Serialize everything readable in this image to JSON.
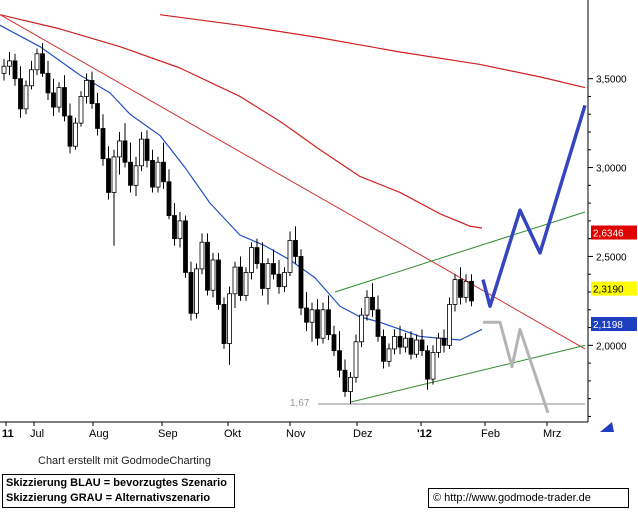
{
  "chart_data": {
    "type": "candlestick",
    "x_tick_labels": [
      "11",
      "Jul",
      "Aug",
      "Sep",
      "Okt",
      "Nov",
      "Dez",
      "'12",
      "Feb",
      "Mrz"
    ],
    "y_tick_labels": [
      "3,5000",
      "3,0000",
      "2,5000",
      "2,0000"
    ],
    "y_ticks": [
      3.5,
      3.0,
      2.5,
      2.0
    ],
    "ylim": [
      1.58,
      3.92
    ],
    "price_tags": [
      {
        "label": "2,6346",
        "value": 2.6346,
        "color": "#e00000"
      },
      {
        "label": "2,3190",
        "value": 2.319,
        "color": "#ffff00"
      },
      {
        "label": "2,1198",
        "value": 2.1198,
        "color": "#1f3fc0"
      }
    ],
    "low_annotation": {
      "label": "1,67",
      "value": 1.67
    },
    "candles": [
      {
        "o": 3.53,
        "h": 3.61,
        "l": 3.49,
        "c": 3.57
      },
      {
        "o": 3.57,
        "h": 3.65,
        "l": 3.52,
        "c": 3.6
      },
      {
        "o": 3.6,
        "h": 3.64,
        "l": 3.46,
        "c": 3.5
      },
      {
        "o": 3.5,
        "h": 3.57,
        "l": 3.28,
        "c": 3.33
      },
      {
        "o": 3.33,
        "h": 3.49,
        "l": 3.3,
        "c": 3.46
      },
      {
        "o": 3.46,
        "h": 3.6,
        "l": 3.44,
        "c": 3.55
      },
      {
        "o": 3.55,
        "h": 3.67,
        "l": 3.52,
        "c": 3.64
      },
      {
        "o": 3.64,
        "h": 3.7,
        "l": 3.51,
        "c": 3.53
      },
      {
        "o": 3.53,
        "h": 3.6,
        "l": 3.38,
        "c": 3.42
      },
      {
        "o": 3.42,
        "h": 3.5,
        "l": 3.29,
        "c": 3.34
      },
      {
        "o": 3.34,
        "h": 3.48,
        "l": 3.31,
        "c": 3.45
      },
      {
        "o": 3.45,
        "h": 3.52,
        "l": 3.26,
        "c": 3.29
      },
      {
        "o": 3.29,
        "h": 3.36,
        "l": 3.08,
        "c": 3.12
      },
      {
        "o": 3.12,
        "h": 3.28,
        "l": 3.1,
        "c": 3.25
      },
      {
        "o": 3.25,
        "h": 3.43,
        "l": 3.23,
        "c": 3.4
      },
      {
        "o": 3.4,
        "h": 3.53,
        "l": 3.36,
        "c": 3.49
      },
      {
        "o": 3.49,
        "h": 3.54,
        "l": 3.33,
        "c": 3.36
      },
      {
        "o": 3.36,
        "h": 3.42,
        "l": 3.18,
        "c": 3.22
      },
      {
        "o": 3.22,
        "h": 3.3,
        "l": 3.01,
        "c": 3.05
      },
      {
        "o": 3.05,
        "h": 3.12,
        "l": 2.82,
        "c": 2.86
      },
      {
        "o": 2.86,
        "h": 3.1,
        "l": 2.56,
        "c": 3.06
      },
      {
        "o": 3.06,
        "h": 3.2,
        "l": 2.96,
        "c": 3.15
      },
      {
        "o": 3.15,
        "h": 3.25,
        "l": 3.0,
        "c": 3.03
      },
      {
        "o": 3.03,
        "h": 3.14,
        "l": 2.86,
        "c": 2.9
      },
      {
        "o": 2.9,
        "h": 3.06,
        "l": 2.84,
        "c": 3.01
      },
      {
        "o": 3.01,
        "h": 3.2,
        "l": 2.98,
        "c": 3.16
      },
      {
        "o": 3.16,
        "h": 3.21,
        "l": 3.0,
        "c": 3.04
      },
      {
        "o": 3.04,
        "h": 3.1,
        "l": 2.86,
        "c": 2.89
      },
      {
        "o": 2.89,
        "h": 3.06,
        "l": 2.86,
        "c": 3.03
      },
      {
        "o": 3.03,
        "h": 3.14,
        "l": 2.88,
        "c": 2.92
      },
      {
        "o": 2.92,
        "h": 2.99,
        "l": 2.71,
        "c": 2.73
      },
      {
        "o": 2.73,
        "h": 2.8,
        "l": 2.56,
        "c": 2.6
      },
      {
        "o": 2.6,
        "h": 2.75,
        "l": 2.55,
        "c": 2.7
      },
      {
        "o": 2.7,
        "h": 2.73,
        "l": 2.38,
        "c": 2.41
      },
      {
        "o": 2.41,
        "h": 2.47,
        "l": 2.14,
        "c": 2.18
      },
      {
        "o": 2.18,
        "h": 2.46,
        "l": 2.15,
        "c": 2.43
      },
      {
        "o": 2.43,
        "h": 2.63,
        "l": 2.4,
        "c": 2.58
      },
      {
        "o": 2.58,
        "h": 2.63,
        "l": 2.28,
        "c": 2.31
      },
      {
        "o": 2.31,
        "h": 2.52,
        "l": 2.27,
        "c": 2.48
      },
      {
        "o": 2.48,
        "h": 2.52,
        "l": 2.2,
        "c": 2.23
      },
      {
        "o": 2.23,
        "h": 2.27,
        "l": 1.98,
        "c": 2.01
      },
      {
        "o": 2.01,
        "h": 2.33,
        "l": 1.89,
        "c": 2.29
      },
      {
        "o": 2.29,
        "h": 2.47,
        "l": 2.21,
        "c": 2.44
      },
      {
        "o": 2.44,
        "h": 2.5,
        "l": 2.25,
        "c": 2.28
      },
      {
        "o": 2.28,
        "h": 2.44,
        "l": 2.25,
        "c": 2.41
      },
      {
        "o": 2.41,
        "h": 2.58,
        "l": 2.37,
        "c": 2.55
      },
      {
        "o": 2.55,
        "h": 2.6,
        "l": 2.43,
        "c": 2.46
      },
      {
        "o": 2.46,
        "h": 2.58,
        "l": 2.28,
        "c": 2.32
      },
      {
        "o": 2.32,
        "h": 2.49,
        "l": 2.23,
        "c": 2.46
      },
      {
        "o": 2.46,
        "h": 2.54,
        "l": 2.37,
        "c": 2.4
      },
      {
        "o": 2.4,
        "h": 2.48,
        "l": 2.29,
        "c": 2.33
      },
      {
        "o": 2.33,
        "h": 2.44,
        "l": 2.3,
        "c": 2.41
      },
      {
        "o": 2.41,
        "h": 2.64,
        "l": 2.39,
        "c": 2.59
      },
      {
        "o": 2.59,
        "h": 2.67,
        "l": 2.46,
        "c": 2.5
      },
      {
        "o": 2.5,
        "h": 2.54,
        "l": 2.17,
        "c": 2.21
      },
      {
        "o": 2.21,
        "h": 2.3,
        "l": 2.08,
        "c": 2.13
      },
      {
        "o": 2.13,
        "h": 2.24,
        "l": 2.02,
        "c": 2.2
      },
      {
        "o": 2.2,
        "h": 2.26,
        "l": 2.0,
        "c": 2.04
      },
      {
        "o": 2.04,
        "h": 2.24,
        "l": 2.01,
        "c": 2.2
      },
      {
        "o": 2.2,
        "h": 2.28,
        "l": 2.03,
        "c": 2.06
      },
      {
        "o": 2.06,
        "h": 2.11,
        "l": 1.94,
        "c": 1.97
      },
      {
        "o": 1.97,
        "h": 2.08,
        "l": 1.82,
        "c": 1.86
      },
      {
        "o": 1.86,
        "h": 1.92,
        "l": 1.71,
        "c": 1.74
      },
      {
        "o": 1.74,
        "h": 1.85,
        "l": 1.67,
        "c": 1.82
      },
      {
        "o": 1.82,
        "h": 2.06,
        "l": 1.79,
        "c": 2.02
      },
      {
        "o": 2.02,
        "h": 2.21,
        "l": 1.99,
        "c": 2.17
      },
      {
        "o": 2.17,
        "h": 2.31,
        "l": 2.14,
        "c": 2.27
      },
      {
        "o": 2.27,
        "h": 2.35,
        "l": 2.16,
        "c": 2.2
      },
      {
        "o": 2.2,
        "h": 2.28,
        "l": 2.02,
        "c": 2.05
      },
      {
        "o": 2.05,
        "h": 2.09,
        "l": 1.87,
        "c": 1.91
      },
      {
        "o": 1.91,
        "h": 2.01,
        "l": 1.88,
        "c": 1.98
      },
      {
        "o": 1.98,
        "h": 2.09,
        "l": 1.95,
        "c": 2.05
      },
      {
        "o": 2.05,
        "h": 2.11,
        "l": 1.95,
        "c": 1.99
      },
      {
        "o": 1.99,
        "h": 2.07,
        "l": 1.96,
        "c": 2.04
      },
      {
        "o": 2.04,
        "h": 2.08,
        "l": 1.92,
        "c": 1.95
      },
      {
        "o": 1.95,
        "h": 2.06,
        "l": 1.93,
        "c": 2.03
      },
      {
        "o": 2.03,
        "h": 2.09,
        "l": 1.94,
        "c": 1.97
      },
      {
        "o": 1.97,
        "h": 2.0,
        "l": 1.75,
        "c": 1.81
      },
      {
        "o": 1.81,
        "h": 2.0,
        "l": 1.78,
        "c": 1.96
      },
      {
        "o": 1.96,
        "h": 2.07,
        "l": 1.93,
        "c": 2.04
      },
      {
        "o": 2.04,
        "h": 2.09,
        "l": 1.96,
        "c": 2.0
      },
      {
        "o": 2.0,
        "h": 2.27,
        "l": 1.98,
        "c": 2.23
      },
      {
        "o": 2.23,
        "h": 2.4,
        "l": 2.19,
        "c": 2.37
      },
      {
        "o": 2.37,
        "h": 2.44,
        "l": 2.23,
        "c": 2.27
      },
      {
        "o": 2.27,
        "h": 2.4,
        "l": 2.24,
        "c": 2.36
      },
      {
        "o": 2.36,
        "h": 2.4,
        "l": 2.22,
        "c": 2.25
      }
    ],
    "moving_average_blue": [
      [
        0,
        3.8
      ],
      [
        40,
        3.68
      ],
      [
        80,
        3.52
      ],
      [
        110,
        3.42
      ],
      [
        130,
        3.3
      ],
      [
        160,
        3.18
      ],
      [
        185,
        3.0
      ],
      [
        210,
        2.8
      ],
      [
        240,
        2.62
      ],
      [
        265,
        2.56
      ],
      [
        290,
        2.48
      ],
      [
        315,
        2.38
      ],
      [
        340,
        2.22
      ],
      [
        360,
        2.16
      ],
      [
        380,
        2.13
      ],
      [
        400,
        2.09
      ],
      [
        420,
        2.05
      ],
      [
        440,
        2.04
      ],
      [
        460,
        2.03
      ],
      [
        482,
        2.09
      ]
    ],
    "moving_average_red": [
      [
        160,
        3.86
      ],
      [
        240,
        3.8
      ],
      [
        320,
        3.73
      ],
      [
        400,
        3.65
      ],
      [
        480,
        3.58
      ],
      [
        540,
        3.51
      ],
      [
        585,
        3.45
      ]
    ],
    "moving_average_red_lower": [
      [
        0,
        3.86
      ],
      [
        60,
        3.78
      ],
      [
        120,
        3.68
      ],
      [
        180,
        3.56
      ],
      [
        240,
        3.4
      ],
      [
        280,
        3.26
      ],
      [
        320,
        3.1
      ],
      [
        360,
        2.95
      ],
      [
        400,
        2.86
      ],
      [
        440,
        2.74
      ],
      [
        470,
        2.67
      ],
      [
        482,
        2.66
      ]
    ],
    "trendlines": [
      {
        "name": "downtrend",
        "color": "#d03030",
        "points": [
          [
            0,
            3.86
          ],
          [
            585,
            1.98
          ]
        ]
      },
      {
        "name": "channel-upper",
        "color": "#2e8b2e",
        "points": [
          [
            335,
            2.3
          ],
          [
            585,
            2.75
          ]
        ]
      },
      {
        "name": "channel-lower",
        "color": "#2e8b2e",
        "points": [
          [
            350,
            1.68
          ],
          [
            585,
            2.0
          ]
        ]
      },
      {
        "name": "support-1.67",
        "color": "#888888",
        "points": [
          [
            318,
            1.67
          ],
          [
            585,
            1.67
          ]
        ]
      }
    ],
    "scenario_blue": [
      [
        483,
        2.37
      ],
      [
        490,
        2.22
      ],
      [
        520,
        2.76
      ],
      [
        540,
        2.52
      ],
      [
        585,
        3.35
      ]
    ],
    "scenario_grey": [
      [
        483,
        2.13
      ],
      [
        500,
        2.13
      ],
      [
        512,
        1.88
      ],
      [
        520,
        2.09
      ],
      [
        548,
        1.62
      ]
    ]
  },
  "credit_text": "Chart erstellt mit GodmodeCharting",
  "legend": {
    "line1": "Skizzierung BLAU = bevorzugtes Szenario",
    "line2": "Skizzierung GRAU = Alternativszenario"
  },
  "url_text": "© http://www.godmode-trader.de"
}
